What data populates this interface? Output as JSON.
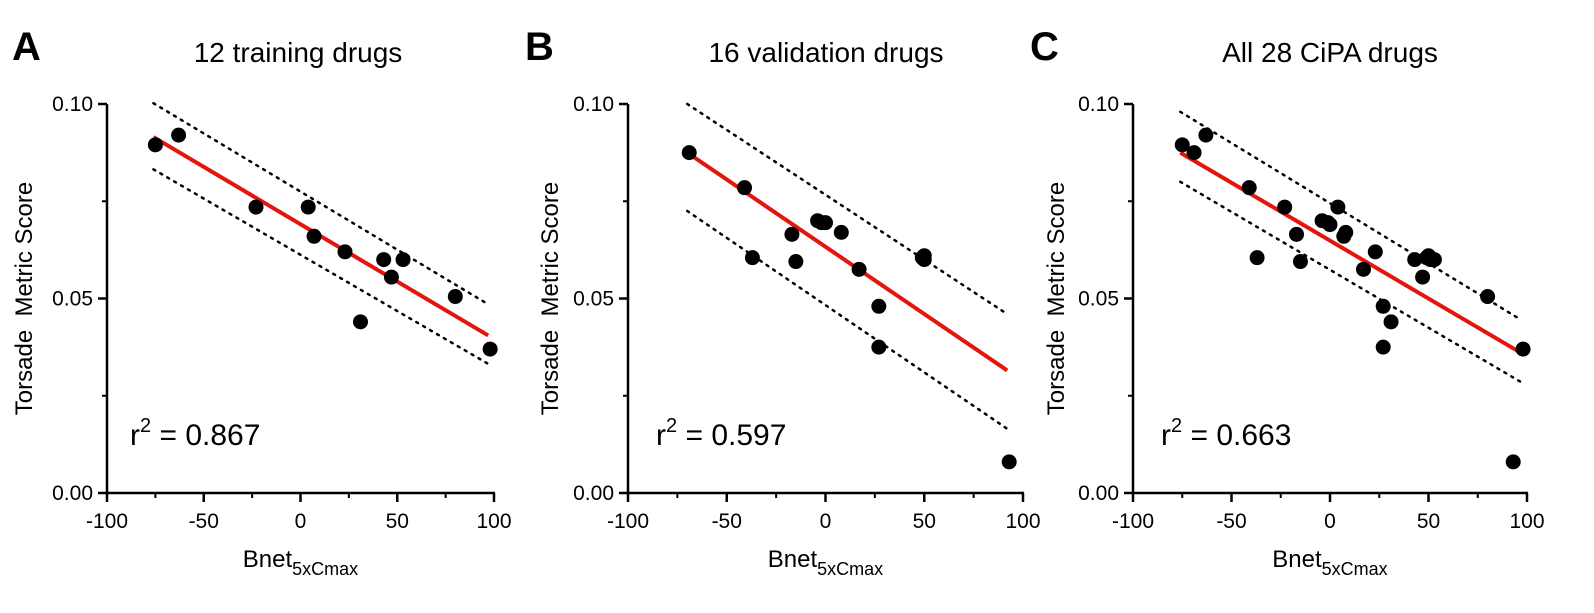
{
  "chart_data": [
    {
      "type": "scatter",
      "panel_label": "A",
      "title": "12 training drugs",
      "xlabel": "Bnet",
      "xlabel_sub": "5xCmax",
      "ylabel": "Torsade  Metric Score",
      "xlim": [
        -100,
        100
      ],
      "ylim": [
        0.0,
        0.1
      ],
      "xticks": [
        "-100",
        "-50",
        "0",
        "50",
        "100"
      ],
      "yticks": [
        "0.00",
        "0.05",
        "0.10"
      ],
      "r2_prefix": "r",
      "r2_sup": "2",
      "r2_value": " = 0.867",
      "points": [
        {
          "x": -75,
          "y": 0.0895
        },
        {
          "x": -63,
          "y": 0.092
        },
        {
          "x": -23,
          "y": 0.0735
        },
        {
          "x": 4,
          "y": 0.0735
        },
        {
          "x": 7,
          "y": 0.066
        },
        {
          "x": 23,
          "y": 0.062
        },
        {
          "x": 31,
          "y": 0.044
        },
        {
          "x": 43,
          "y": 0.06
        },
        {
          "x": 47,
          "y": 0.0555
        },
        {
          "x": 53,
          "y": 0.06
        },
        {
          "x": 80,
          "y": 0.0505
        },
        {
          "x": 98,
          "y": 0.037
        }
      ],
      "fit_line": {
        "x": [
          -76,
          97
        ],
        "y": [
          0.0915,
          0.0405
        ]
      },
      "ci_upper": {
        "x": [
          -76,
          97
        ],
        "y": [
          0.1002,
          0.0485
        ]
      },
      "ci_lower": {
        "x": [
          -76,
          97
        ],
        "y": [
          0.0832,
          0.0332
        ]
      },
      "colors": {
        "points": "#000000",
        "fit": "#e3150d",
        "ci": "#000000"
      }
    },
    {
      "type": "scatter",
      "panel_label": "B",
      "title": "16 validation drugs",
      "xlabel": "Bnet",
      "xlabel_sub": "5xCmax",
      "ylabel": "Torsade  Metric Score",
      "xlim": [
        -100,
        100
      ],
      "ylim": [
        0.0,
        0.1
      ],
      "xticks": [
        "-100",
        "-50",
        "0",
        "50",
        "100"
      ],
      "yticks": [
        "0.00",
        "0.05",
        "0.10"
      ],
      "r2_prefix": "r",
      "r2_sup": "2",
      "r2_value": " = 0.597",
      "points": [
        {
          "x": -69,
          "y": 0.0875
        },
        {
          "x": -41,
          "y": 0.0785
        },
        {
          "x": -37,
          "y": 0.0605
        },
        {
          "x": -17,
          "y": 0.0665
        },
        {
          "x": -15,
          "y": 0.0595
        },
        {
          "x": -4,
          "y": 0.07
        },
        {
          "x": -2,
          "y": 0.0695
        },
        {
          "x": 0,
          "y": 0.0695
        },
        {
          "x": 8,
          "y": 0.067
        },
        {
          "x": 17,
          "y": 0.0575
        },
        {
          "x": 27,
          "y": 0.048
        },
        {
          "x": 27,
          "y": 0.0375
        },
        {
          "x": 49,
          "y": 0.0605
        },
        {
          "x": 50,
          "y": 0.061
        },
        {
          "x": 50,
          "y": 0.06
        },
        {
          "x": 93,
          "y": 0.008
        }
      ],
      "fit_line": {
        "x": [
          -70,
          92
        ],
        "y": [
          0.0875,
          0.0315
        ]
      },
      "ci_upper": {
        "x": [
          -70,
          92
        ],
        "y": [
          0.1,
          0.046
        ]
      },
      "ci_lower": {
        "x": [
          -70,
          92
        ],
        "y": [
          0.0725,
          0.0165
        ]
      },
      "colors": {
        "points": "#000000",
        "fit": "#e3150d",
        "ci": "#000000"
      }
    },
    {
      "type": "scatter",
      "panel_label": "C",
      "title": "All 28 CiPA drugs",
      "xlabel": "Bnet",
      "xlabel_sub": "5xCmax",
      "ylabel": "Torsade  Metric Score",
      "xlim": [
        -100,
        100
      ],
      "ylim": [
        0.0,
        0.1
      ],
      "xticks": [
        "-100",
        "-50",
        "0",
        "50",
        "100"
      ],
      "yticks": [
        "0.00",
        "0.05",
        "0.10"
      ],
      "r2_prefix": "r",
      "r2_sup": "2",
      "r2_value": " = 0.663",
      "points": [
        {
          "x": -75,
          "y": 0.0895
        },
        {
          "x": -69,
          "y": 0.0875
        },
        {
          "x": -63,
          "y": 0.092
        },
        {
          "x": -41,
          "y": 0.0785
        },
        {
          "x": -37,
          "y": 0.0605
        },
        {
          "x": -23,
          "y": 0.0735
        },
        {
          "x": -17,
          "y": 0.0665
        },
        {
          "x": -15,
          "y": 0.0595
        },
        {
          "x": -4,
          "y": 0.07
        },
        {
          "x": -1,
          "y": 0.0695
        },
        {
          "x": 0,
          "y": 0.069
        },
        {
          "x": 4,
          "y": 0.0735
        },
        {
          "x": 7,
          "y": 0.066
        },
        {
          "x": 8,
          "y": 0.067
        },
        {
          "x": 17,
          "y": 0.0575
        },
        {
          "x": 23,
          "y": 0.062
        },
        {
          "x": 27,
          "y": 0.048
        },
        {
          "x": 27,
          "y": 0.0375
        },
        {
          "x": 31,
          "y": 0.044
        },
        {
          "x": 43,
          "y": 0.06
        },
        {
          "x": 47,
          "y": 0.0555
        },
        {
          "x": 49,
          "y": 0.0605
        },
        {
          "x": 50,
          "y": 0.061
        },
        {
          "x": 51,
          "y": 0.06
        },
        {
          "x": 53,
          "y": 0.06
        },
        {
          "x": 80,
          "y": 0.0505
        },
        {
          "x": 93,
          "y": 0.008
        },
        {
          "x": 98,
          "y": 0.037
        }
      ],
      "fit_line": {
        "x": [
          -76,
          97
        ],
        "y": [
          0.0875,
          0.036
        ]
      },
      "ci_upper": {
        "x": [
          -76,
          97
        ],
        "y": [
          0.098,
          0.0445
        ]
      },
      "ci_lower": {
        "x": [
          -76,
          97
        ],
        "y": [
          0.08,
          0.0285
        ]
      },
      "colors": {
        "points": "#000000",
        "fit": "#e3150d",
        "ci": "#000000"
      }
    }
  ]
}
